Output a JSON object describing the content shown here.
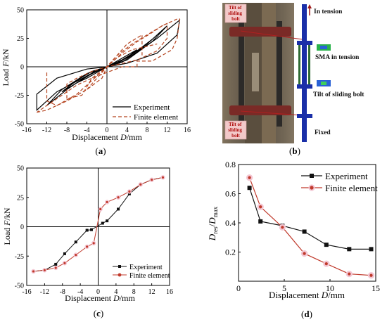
{
  "captions": {
    "a": "(a)",
    "b": "(b)",
    "c": "(c)",
    "d": "(d)"
  },
  "panel_b": {
    "label_tilt_top": [
      "Tilt of",
      "sliding",
      "bolt"
    ],
    "label_tilt_bottom": [
      "Tilt of",
      "sliding",
      "bolt"
    ],
    "in_tension": "In tension",
    "sma_in_tension": "SMA in tension",
    "tilt_sliding_bolt": "Tilt of sliding bolt",
    "fixed": "Fixed",
    "colors": {
      "arrow": "#a01818",
      "bolt": "#1a2fa8",
      "label_bg": "#f2c9c9",
      "label_text": "#b01010"
    }
  },
  "chart_data": [
    {
      "id": "a",
      "type": "line",
      "xlabel_main": "Displacement ",
      "xlabel_var": "D",
      "xlabel_unit": "/mm",
      "ylabel_main": "Load ",
      "ylabel_var": "F",
      "ylabel_unit": "/kN",
      "xlim": [
        -16,
        16
      ],
      "ylim": [
        -50,
        50
      ],
      "xticks": [
        -16,
        -12,
        -8,
        -4,
        0,
        4,
        8,
        12,
        16
      ],
      "yticks": [
        -50,
        -25,
        0,
        25,
        50
      ],
      "legend": {
        "position": "bottom-right",
        "entries": [
          "Experiment",
          "Finite element"
        ]
      },
      "series": [
        {
          "name": "Experiment",
          "color": "#000000",
          "dash": "",
          "loops": [
            {
              "x": [
                0,
                2,
                4,
                6,
                4,
                2,
                0,
                -2,
                -4,
                -6,
                -4,
                -2,
                0
              ],
              "y": [
                0,
                5,
                10,
                15,
                8,
                3,
                0,
                -5,
                -10,
                -14,
                -8,
                -3,
                0
              ]
            },
            {
              "x": [
                0,
                3,
                6,
                9,
                6,
                3,
                0,
                -3,
                -6,
                -9,
                -6,
                -3,
                0
              ],
              "y": [
                0,
                6,
                14,
                24,
                13,
                4,
                0,
                -6,
                -14,
                -22,
                -12,
                -4,
                0
              ]
            },
            {
              "x": [
                0,
                4,
                8,
                12,
                9,
                4,
                0,
                -4,
                -8,
                -12,
                -9,
                -4,
                0
              ],
              "y": [
                0,
                8,
                20,
                36,
                22,
                6,
                0,
                -8,
                -20,
                -34,
                -20,
                -6,
                0
              ]
            },
            {
              "x": [
                0,
                5,
                10,
                14.5,
                14,
                10,
                4,
                0,
                -4,
                -10,
                -14,
                -14,
                -10,
                -4,
                0
              ],
              "y": [
                0,
                10,
                25,
                41,
                28,
                12,
                3,
                0,
                -8,
                -22,
                -38,
                -24,
                -10,
                -2,
                0
              ]
            }
          ]
        },
        {
          "name": "Finite element",
          "color": "#b5441f",
          "dash": "5,3",
          "loops": [
            {
              "x": [
                -14,
                -12,
                -8,
                -4,
                -1,
                0,
                2,
                5,
                8,
                11,
                14,
                14.5,
                14,
                13,
                9,
                6,
                6,
                3,
                0,
                -3,
                -6,
                -10,
                -14,
                -14
              ],
              "y": [
                -40,
                -38,
                -30,
                -20,
                -10,
                0,
                10,
                20,
                28,
                36,
                42,
                42,
                25,
                15,
                5,
                5,
                0,
                0,
                -5,
                -10,
                -16,
                -28,
                -40,
                -40
              ]
            },
            {
              "x": [
                -8,
                -8,
                -5,
                -3,
                0,
                3,
                6,
                9,
                11,
                12,
                12,
                10,
                6,
                2,
                0,
                -3,
                -6,
                -8
              ],
              "y": [
                -15,
                -28,
                -25,
                -10,
                0,
                12,
                22,
                30,
                36,
                38,
                25,
                14,
                6,
                2,
                0,
                -4,
                -10,
                -15
              ]
            },
            {
              "x": [
                -12,
                -12,
                -11,
                -10,
                -6,
                -2,
                0,
                2,
                5,
                10
              ],
              "y": [
                -5,
                -30,
                -32,
                -34,
                -24,
                -8,
                0,
                8,
                15,
                20
              ]
            },
            {
              "x": [
                -4,
                -2,
                0,
                2,
                4,
                7,
                7
              ],
              "y": [
                -20,
                -10,
                0,
                10,
                20,
                28,
                10
              ]
            }
          ]
        }
      ]
    },
    {
      "id": "c",
      "type": "line",
      "xlabel_main": "Displacement ",
      "xlabel_var": "D",
      "xlabel_unit": "/mm",
      "ylabel_main": "Load ",
      "ylabel_var": "F",
      "ylabel_unit": "/kN",
      "xlim": [
        -16,
        16
      ],
      "ylim": [
        -50,
        50
      ],
      "xticks": [
        -16,
        -12,
        -8,
        -4,
        0,
        4,
        8,
        12,
        16
      ],
      "yticks": [
        -50,
        -25,
        0,
        25,
        50
      ],
      "legend": {
        "position": "bottom-right",
        "entries": [
          "Experiment",
          "Finite element"
        ]
      },
      "series": [
        {
          "name": "Experiment",
          "color": "#111111",
          "marker": "square",
          "x": [
            -14.5,
            -12,
            -9.5,
            -7.5,
            -5,
            -2.5,
            -1.5,
            1,
            2,
            4.5,
            7,
            9.5,
            12,
            14.5
          ],
          "y": [
            -38,
            -37,
            -32,
            -23,
            -13,
            -3,
            -2.5,
            3,
            5,
            15,
            28,
            36,
            40,
            42
          ]
        },
        {
          "name": "Finite element",
          "color": "#c0392b",
          "marker": "circle",
          "x": [
            -14.5,
            -12,
            -9.5,
            -7.5,
            -5,
            -2.5,
            -1,
            0.5,
            2,
            4.5,
            7,
            9.5,
            12,
            14.5
          ],
          "y": [
            -38,
            -37,
            -35,
            -31,
            -24,
            -17,
            -14,
            15,
            21,
            25,
            30,
            36,
            40,
            42
          ]
        }
      ]
    },
    {
      "id": "d",
      "type": "line",
      "xlabel_main": "Displacement ",
      "xlabel_var": "D",
      "xlabel_unit": "/mm",
      "ylabel_var": "D",
      "ylabel_sub1": "res",
      "ylabel_sep": "/",
      "ylabel_var2": "D",
      "ylabel_sub2": "max",
      "xlim": [
        0,
        15
      ],
      "ylim": [
        0.0,
        0.8
      ],
      "xticks": [
        0,
        5,
        10,
        15
      ],
      "yticks": [
        0.2,
        0.4,
        0.6,
        0.8
      ],
      "ytick_labels": [
        "0.2",
        "0.4",
        "0.6",
        "0.8"
      ],
      "legend": {
        "position": "top-right",
        "entries": [
          "Experiment",
          "Finite element"
        ]
      },
      "series": [
        {
          "name": "Experiment",
          "color": "#111111",
          "marker": "square",
          "x": [
            1.2,
            2.4,
            4.8,
            7.2,
            9.6,
            12.1,
            14.5
          ],
          "y": [
            0.64,
            0.41,
            0.38,
            0.34,
            0.25,
            0.22,
            0.22
          ]
        },
        {
          "name": "Finite element",
          "color": "#c0392b",
          "marker": "circle",
          "x": [
            1.2,
            2.4,
            4.8,
            7.2,
            9.6,
            12.1,
            14.5
          ],
          "y": [
            0.71,
            0.51,
            0.37,
            0.19,
            0.12,
            0.05,
            0.04
          ]
        }
      ]
    }
  ]
}
